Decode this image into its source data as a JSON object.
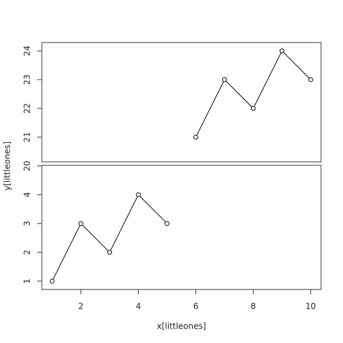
{
  "chart_data": [
    {
      "type": "line",
      "ylabel": "y[littleones]",
      "x": [
        6,
        7,
        8,
        9,
        10
      ],
      "values": [
        21,
        23,
        22,
        24,
        23
      ],
      "color": "#000000",
      "xlim": [
        0.64,
        10.36
      ],
      "ylim": [
        20.14,
        24.29
      ],
      "yticks": [
        20,
        21,
        22,
        23,
        24
      ]
    },
    {
      "type": "line",
      "xlabel": "x[littleones]",
      "x": [
        1,
        2,
        3,
        4,
        5
      ],
      "values": [
        1,
        3,
        2,
        4,
        3
      ],
      "color": "#000000",
      "xlim": [
        0.64,
        10.36
      ],
      "ylim": [
        0.71,
        5.02
      ],
      "yticks": [
        1,
        2,
        3,
        4
      ],
      "xticks": [
        2,
        4,
        6,
        8,
        10
      ]
    }
  ]
}
